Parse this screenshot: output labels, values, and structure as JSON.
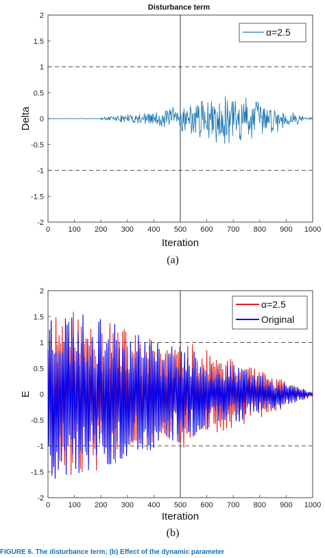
{
  "chart_data": [
    {
      "type": "line",
      "title": "Disturbance term",
      "xlabel": "Iteration",
      "ylabel": "Delta",
      "xlim": [
        0,
        1000
      ],
      "ylim": [
        -2,
        2
      ],
      "x_ticks": [
        0,
        100,
        200,
        300,
        400,
        500,
        600,
        700,
        800,
        900,
        1000
      ],
      "y_ticks": [
        -2,
        -1.5,
        -1,
        -0.5,
        0,
        0.5,
        1,
        1.5,
        2
      ],
      "reference_lines": {
        "horizontal": [
          1,
          -1
        ],
        "vertical": [
          500
        ]
      },
      "legend": {
        "placement": "top-right",
        "entries": [
          "α=2.5"
        ]
      },
      "series": [
        {
          "name": "α=2.5",
          "color": "#1f77b4",
          "envelope_peak": 0.5,
          "envelope_peak_x": 700
        }
      ],
      "subfigure_label": "(a)"
    },
    {
      "type": "line",
      "title": "",
      "xlabel": "Iteration",
      "ylabel": "E",
      "xlim": [
        0,
        1000
      ],
      "ylim": [
        -2,
        2
      ],
      "x_ticks": [
        0,
        100,
        200,
        300,
        400,
        500,
        600,
        700,
        800,
        900,
        1000
      ],
      "y_ticks": [
        -2,
        -1.5,
        -1,
        -0.5,
        0,
        0.5,
        1,
        1.5,
        2
      ],
      "reference_lines": {
        "horizontal": [
          1,
          -1
        ],
        "vertical": [
          500
        ]
      },
      "legend": {
        "placement": "top-right",
        "entries": [
          "α=2.5",
          "Original"
        ]
      },
      "series": [
        {
          "name": "α=2.5",
          "color": "#e41a1c",
          "amplitude_start": 1.8,
          "amplitude_end": 0.05
        },
        {
          "name": "Original",
          "color": "#0000ee",
          "amplitude_start": 1.8,
          "amplitude_end": 0.05
        }
      ],
      "subfigure_label": "(b)"
    }
  ],
  "caption_fragment": "FIGURE 6. The disturbance term; (b) Effect of the dynamic parameter"
}
